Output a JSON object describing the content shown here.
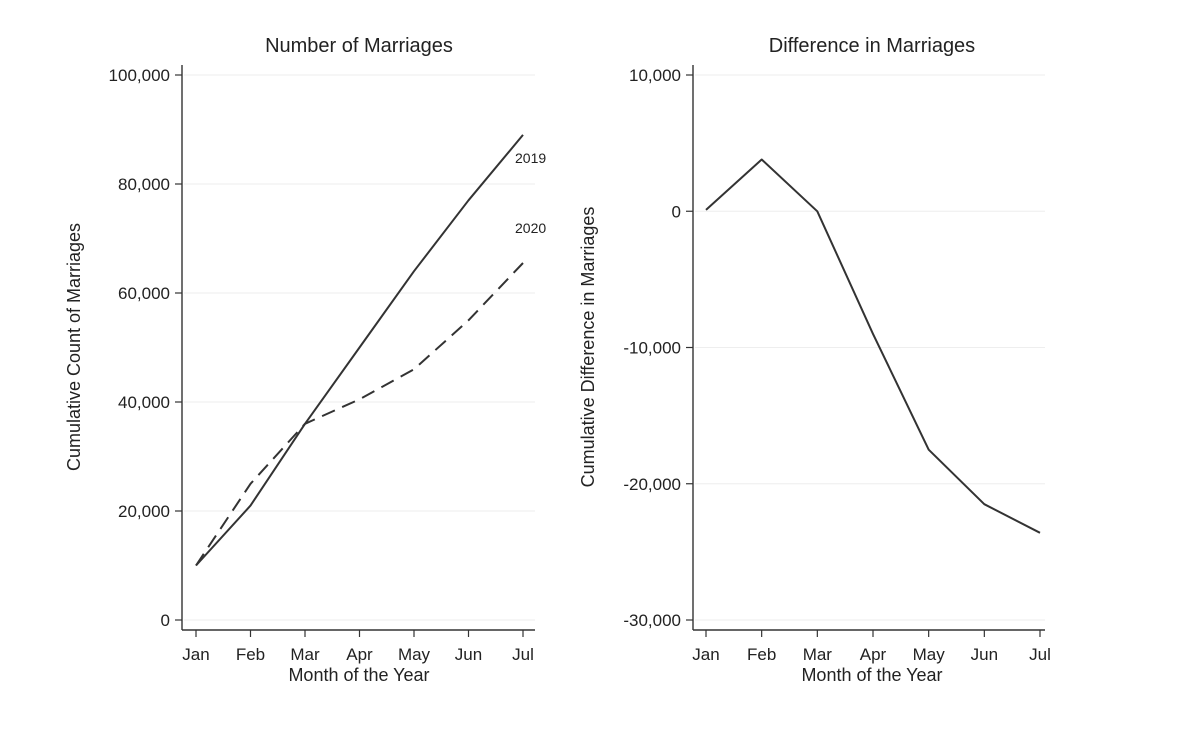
{
  "chart_data": [
    {
      "type": "line",
      "title": "Number of Marriages",
      "xlabel": "Month of the Year",
      "ylabel": "Cumulative Count of Marriages",
      "categories": [
        "Jan",
        "Feb",
        "Mar",
        "Apr",
        "May",
        "Jun",
        "Jul"
      ],
      "yticks": [
        0,
        20000,
        40000,
        60000,
        80000,
        100000
      ],
      "ytick_labels": [
        "0",
        "20,000",
        "40,000",
        "60,000",
        "80,000",
        "100,000"
      ],
      "ylim": [
        0,
        100000
      ],
      "grid": true,
      "series": [
        {
          "name": "2019",
          "style": "solid",
          "values": [
            10000,
            21000,
            36000,
            50000,
            64000,
            77000,
            89000
          ]
        },
        {
          "name": "2020",
          "style": "dashed",
          "values": [
            10000,
            25000,
            36000,
            40500,
            46000,
            55000,
            65500
          ]
        }
      ]
    },
    {
      "type": "line",
      "title": "Difference in Marriages",
      "xlabel": "Month of the Year",
      "ylabel": "Cumulative Difference in Marriages",
      "categories": [
        "Jan",
        "Feb",
        "Mar",
        "Apr",
        "May",
        "Jun",
        "Jul"
      ],
      "yticks": [
        -30000,
        -20000,
        -10000,
        0,
        10000
      ],
      "ytick_labels": [
        "-30,000",
        "-20,000",
        "-10,000",
        "0",
        "10,000"
      ],
      "ylim": [
        -30000,
        10000
      ],
      "grid": true,
      "series": [
        {
          "style": "solid",
          "values": [
            100,
            3800,
            0,
            -9000,
            -17500,
            -21500,
            -23600
          ]
        }
      ]
    }
  ]
}
